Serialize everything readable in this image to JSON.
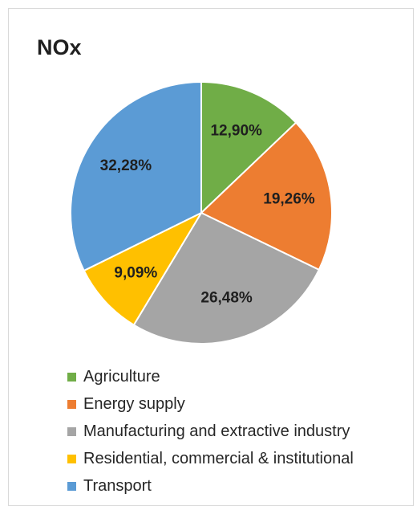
{
  "chart_data": {
    "type": "pie",
    "title": "NOx",
    "legend_position": "bottom",
    "slices": [
      {
        "label": "Agriculture",
        "value": 12.9,
        "display": "12,90%",
        "color": "#70ad47"
      },
      {
        "label": "Energy supply",
        "value": 19.26,
        "display": "19,26%",
        "color": "#ed7d31"
      },
      {
        "label": "Manufacturing and extractive industry",
        "value": 26.48,
        "display": "26,48%",
        "color": "#a5a5a5"
      },
      {
        "label": "Residential, commercial & institutional",
        "value": 9.09,
        "display": "9,09%",
        "color": "#ffc000"
      },
      {
        "label": "Transport",
        "value": 32.28,
        "display": "32,28%",
        "color": "#5b9bd5"
      }
    ]
  }
}
